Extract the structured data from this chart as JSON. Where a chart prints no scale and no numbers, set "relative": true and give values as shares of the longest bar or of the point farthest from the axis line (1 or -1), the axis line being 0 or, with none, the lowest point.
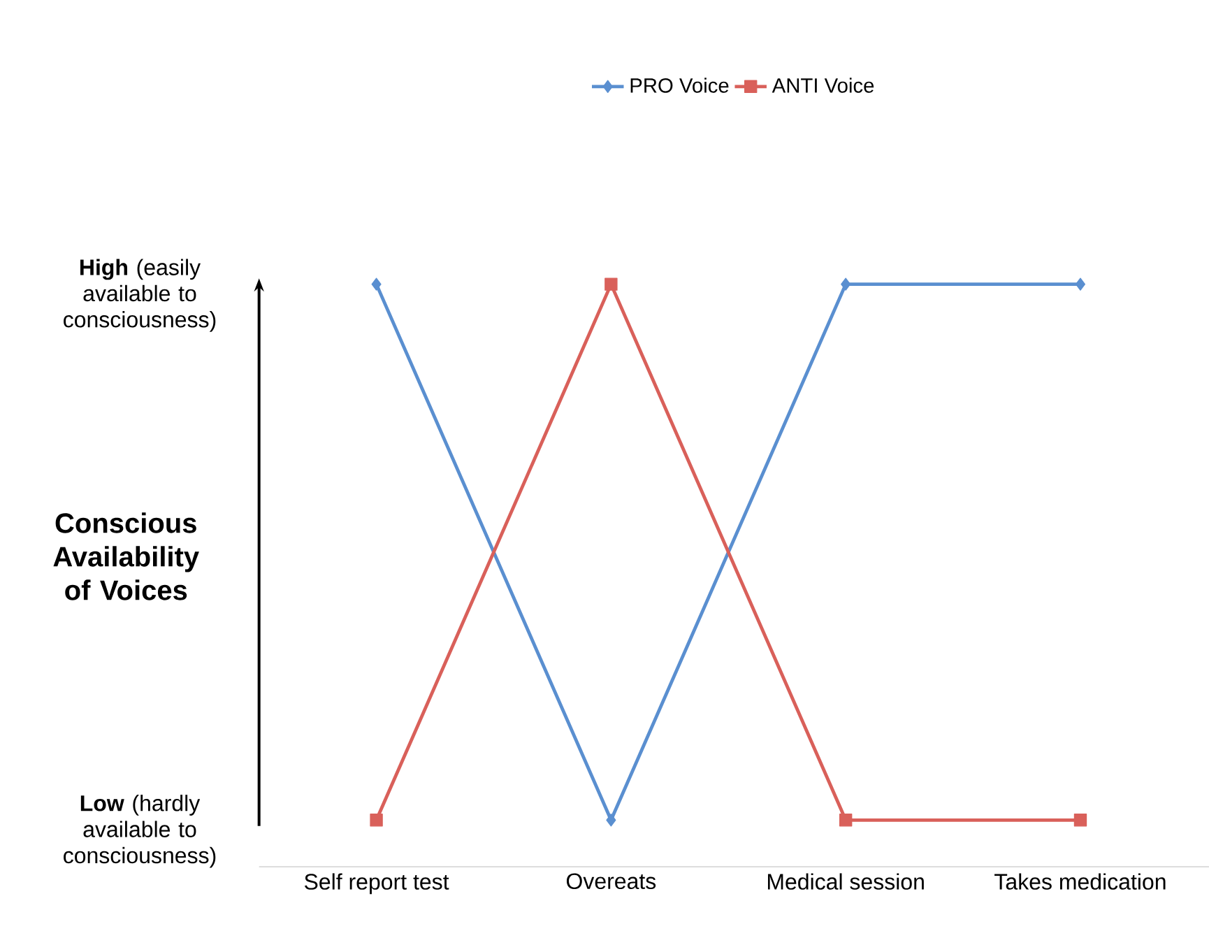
{
  "chart_data": {
    "type": "line",
    "relative": true,
    "ylabel": "Conscious Availability of Voices",
    "categories": [
      "Self report test",
      "Overeats",
      "Medical session",
      "Takes medication"
    ],
    "series": [
      {
        "name": "PRO Voice",
        "color": "#5a8fd0",
        "marker": "diamond",
        "values": [
          1,
          0.08,
          1,
          1
        ]
      },
      {
        "name": "ANTI Voice",
        "color": "#d9605a",
        "marker": "square",
        "values": [
          0.08,
          1,
          0.08,
          0.08
        ]
      }
    ],
    "annotations": [
      "**High** (easily available to consciousness)",
      "**Low** (hardly available to consciousness)"
    ],
    "legend": "top"
  }
}
